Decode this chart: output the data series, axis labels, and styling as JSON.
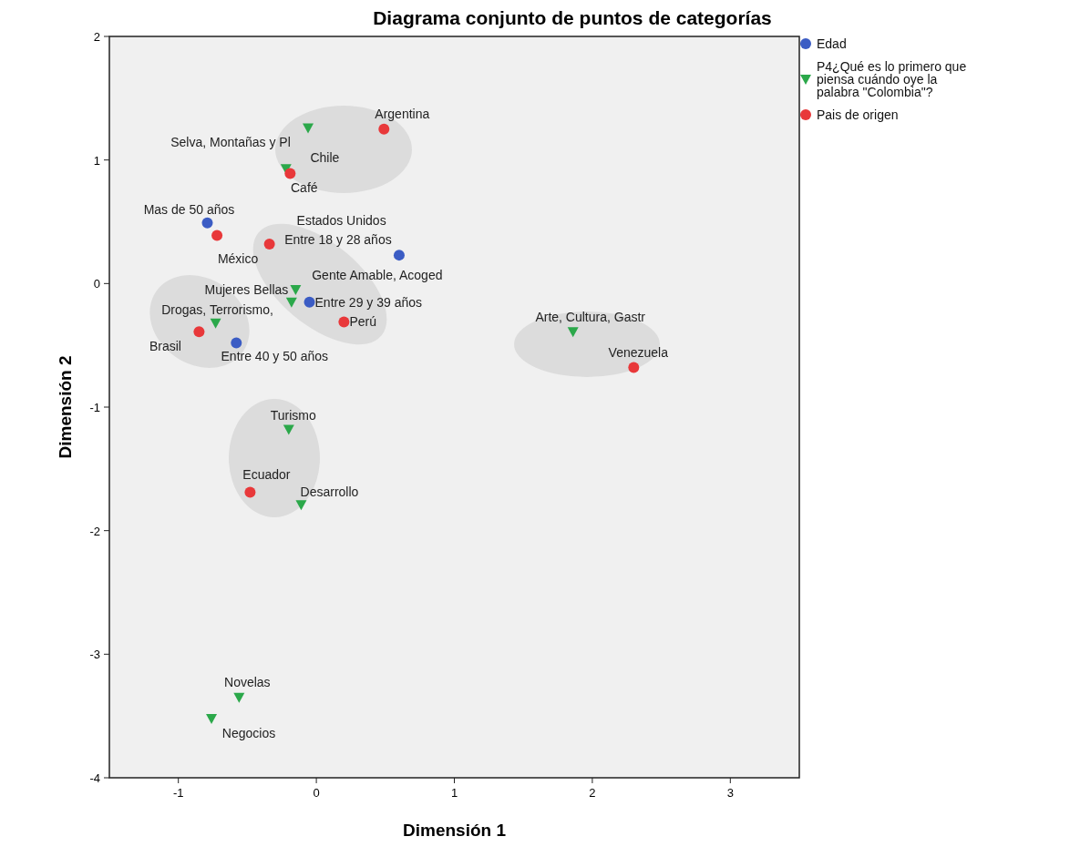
{
  "chart_data": {
    "type": "scatter",
    "title": "Diagrama conjunto de puntos de categorías",
    "xlabel": "Dimensión 1",
    "ylabel": "Dimensión 2",
    "xlim": [
      -1.5,
      3.5
    ],
    "xticks": [
      -1,
      0,
      1,
      2,
      3
    ],
    "ylim": [
      -4,
      2
    ],
    "yticks": [
      -4,
      -3,
      -2,
      -1,
      0,
      1,
      2
    ],
    "grid": false,
    "legend": "right",
    "series": [
      {
        "name": "Edad",
        "color": "#3b5cc4",
        "marker": "circle",
        "x": [
          -0.79,
          0.6,
          -0.05,
          -0.58
        ],
        "values": [
          0.49,
          0.23,
          -0.15,
          -0.48
        ]
      },
      {
        "name": "P4¿Qué es lo primero que piensa cuándo oye la palabra \"Colombia\"?",
        "color": "#2ba84a",
        "marker": "triangle",
        "x": [
          -0.06,
          -0.22,
          -0.15,
          -0.18,
          -0.73,
          1.86,
          -0.2,
          -0.11,
          -0.56,
          -0.76
        ],
        "values": [
          1.26,
          0.93,
          -0.05,
          -0.15,
          -0.32,
          -0.39,
          -1.18,
          -1.79,
          -3.35,
          -3.52
        ]
      },
      {
        "name": "Pais de origen",
        "color": "#e8383a",
        "marker": "circle",
        "x": [
          0.49,
          -0.19,
          -0.34,
          -0.72,
          0.2,
          -0.85,
          2.3,
          -0.48
        ],
        "values": [
          1.25,
          0.89,
          0.32,
          0.39,
          -0.31,
          -0.39,
          -0.68,
          -1.69
        ]
      }
    ],
    "annotations": [
      {
        "text": "Mas de 50 años",
        "x": -0.79,
        "y": 0.49
      },
      {
        "text": "Entre 18 y 28 años",
        "x": 0.6,
        "y": 0.23
      },
      {
        "text": "Entre 29 y 39 años",
        "x": -0.05,
        "y": -0.15
      },
      {
        "text": "Entre 40 y 50 años",
        "x": -0.58,
        "y": -0.48
      },
      {
        "text": "Selva, Montañas y Pl",
        "x": -0.06,
        "y": 1.26
      },
      {
        "text": "Café",
        "x": -0.22,
        "y": 0.93
      },
      {
        "text": "Mujeres Bellas",
        "x": -0.15,
        "y": -0.05
      },
      {
        "text": "Gente Amable, Acoged",
        "x": -0.18,
        "y": -0.15
      },
      {
        "text": "Drogas, Terrorismo,",
        "x": -0.73,
        "y": -0.32
      },
      {
        "text": "Arte, Cultura, Gastr",
        "x": 1.86,
        "y": -0.39
      },
      {
        "text": "Turismo",
        "x": -0.2,
        "y": -1.18
      },
      {
        "text": "Desarrollo",
        "x": -0.11,
        "y": -1.79
      },
      {
        "text": "Novelas",
        "x": -0.56,
        "y": -3.35
      },
      {
        "text": "Negocios",
        "x": -0.76,
        "y": -3.52
      },
      {
        "text": "Argentina",
        "x": 0.49,
        "y": 1.25
      },
      {
        "text": "Chile",
        "x": -0.19,
        "y": 0.89
      },
      {
        "text": "Estados Unidos",
        "x": -0.34,
        "y": 0.32
      },
      {
        "text": "México",
        "x": -0.72,
        "y": 0.39
      },
      {
        "text": "Perú",
        "x": 0.2,
        "y": -0.31
      },
      {
        "text": "Brasil",
        "x": -0.85,
        "y": -0.39
      },
      {
        "text": "Venezuela",
        "x": 2.3,
        "y": -0.68
      },
      {
        "text": "Ecuador",
        "x": -0.48,
        "y": -1.69
      }
    ]
  }
}
